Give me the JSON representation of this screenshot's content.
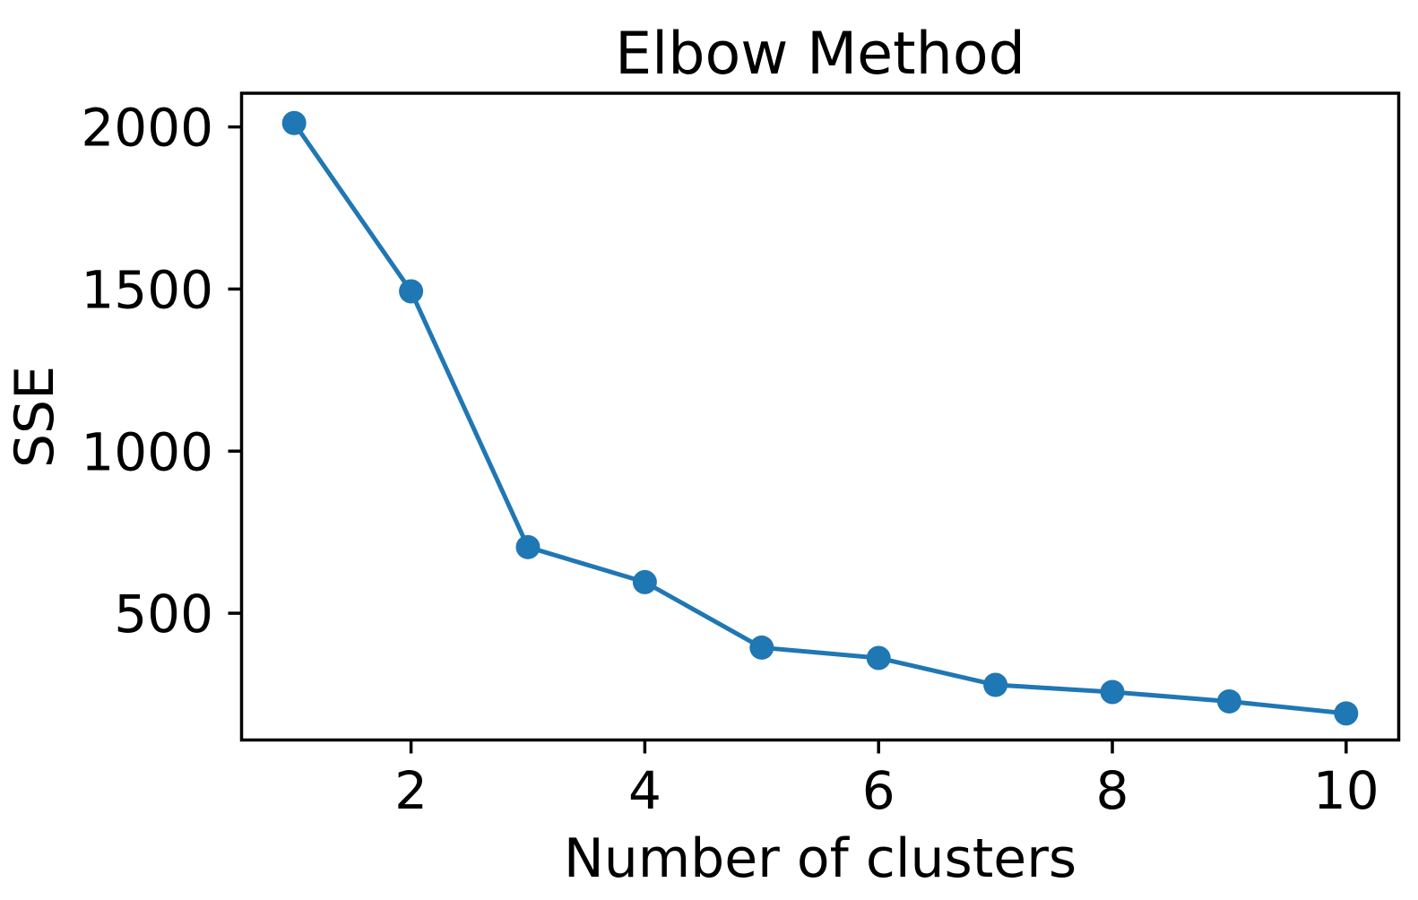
{
  "figure": {
    "background_color": "#ffffff",
    "text_color": "#000000",
    "spine_color": "#000000"
  },
  "chart_data": {
    "type": "line",
    "title": "Elbow Method",
    "xlabel": "Number of clusters",
    "ylabel": "SSE",
    "x": [
      1,
      2,
      3,
      4,
      5,
      6,
      7,
      8,
      9,
      10
    ],
    "y": [
      2012,
      1493,
      704,
      596,
      394,
      362,
      279,
      257,
      228,
      191
    ],
    "xticks": [
      2,
      4,
      6,
      8,
      10
    ],
    "yticks": [
      500,
      1000,
      1500,
      2000
    ],
    "xlim": [
      0.55,
      10.45
    ],
    "ylim": [
      109,
      2104
    ],
    "grid": false,
    "legend": "none",
    "line_color": "#1f77b4",
    "marker": "circle",
    "marker_color": "#1f77b4"
  }
}
